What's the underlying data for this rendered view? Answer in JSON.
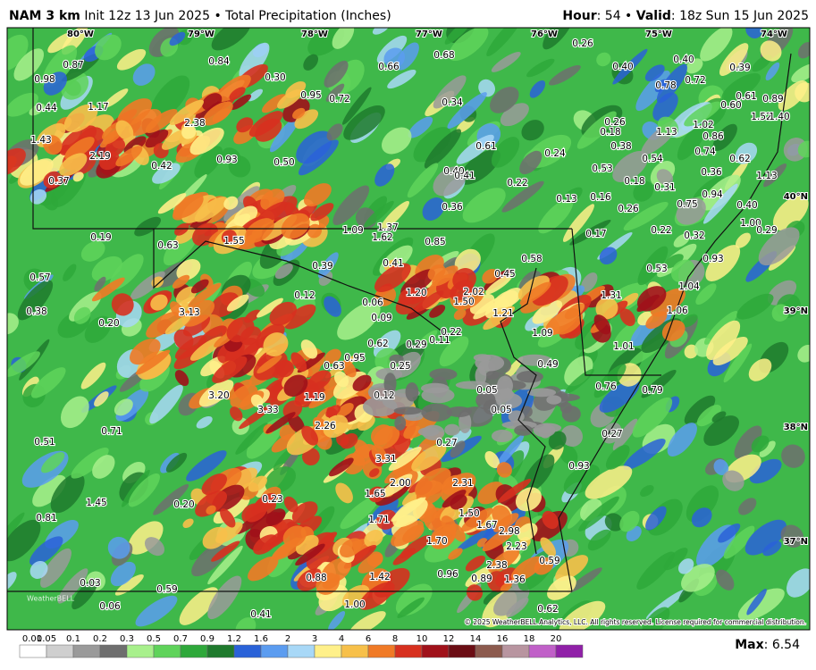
{
  "header": {
    "model": "NAM 3 km",
    "info": "Init 12z 13 Jun 2025 • Total Precipitation (Inches)",
    "hour_key": "Hour",
    "hour_value": ": 54 • ",
    "valid_key": "Valid",
    "valid_value": ": 18z Sun 15 Jun 2025"
  },
  "longitudes": [
    "80°W",
    "79°W",
    "78°W",
    "77°W",
    "76°W",
    "75°W",
    "74°W"
  ],
  "latitudes": [
    "40°N",
    "39°N",
    "38°N",
    "37°N"
  ],
  "points": [
    "0.87",
    "0.98",
    "0.84",
    "0.30",
    "0.66",
    "0.68",
    "0.26",
    "0.40",
    "0.39",
    "0.40",
    "0.78",
    "0.72",
    "0.44",
    "1.17",
    "0.95",
    "0.72",
    "0.34",
    "0.61",
    "0.89",
    "0.60",
    "2.38",
    "1.43",
    "1.52",
    "1.40",
    "0.26",
    "1.02",
    "0.18",
    "1.13",
    "0.86",
    "0.61",
    "0.38",
    "0.74",
    "2.19",
    "0.24",
    "0.54",
    "0.62",
    "0.93",
    "0.50",
    "0.42",
    "0.53",
    "0.36",
    "1.13",
    "0.40",
    "0.41",
    "0.37",
    "0.22",
    "0.18",
    "0.31",
    "0.94",
    "0.13",
    "0.16",
    "0.75",
    "0.40",
    "0.36",
    "0.26",
    "1.00",
    "0.29",
    "0.17",
    "0.22",
    "0.32",
    "1.09",
    "1.37",
    "1.62",
    "0.85",
    "0.19",
    "0.63",
    "1.55",
    "0.93",
    "0.58",
    "0.41",
    "0.39",
    "0.53",
    "0.57",
    "0.45",
    "1.04",
    "1.20",
    "2.02",
    "0.12",
    "1.31",
    "1.50",
    "0.06",
    "0.38",
    "3.13",
    "1.06",
    "1.21",
    "0.20",
    "0.09",
    "0.22",
    "1.09",
    "0.62",
    "0.29",
    "0.11",
    "1.01",
    "0.95",
    "0.49",
    "0.63",
    "0.25",
    "0.76",
    "0.79",
    "0.05",
    "1.19",
    "0.12",
    "3.20",
    "3.33",
    "0.05",
    "2.26",
    "0.71",
    "0.27",
    "0.27",
    "0.51",
    "3.31",
    "0.93",
    "2.00",
    "2.31",
    "1.65",
    "0.23",
    "0.20",
    "1.45",
    "1.50",
    "0.81",
    "1.71",
    "1.67",
    "2.98",
    "1.70",
    "2.23",
    "2.38",
    "0.59",
    "0.88",
    "1.42",
    "0.96",
    "0.89",
    "1.36",
    "0.03",
    "0.59",
    "0.06",
    "1.00",
    "0.41",
    "0.62"
  ],
  "watermark": "WeatherBELL",
  "copyright": "© 2025 WeatherBELL Analytics, LLC. All rights reserved. License required for commercial distribution.",
  "colorbar": {
    "labels": [
      "0.01",
      "0.05",
      "0.1",
      "0.2",
      "0.3",
      "0.5",
      "0.7",
      "0.9",
      "1.2",
      "1.6",
      "2",
      "3",
      "4",
      "6",
      "8",
      "10",
      "12",
      "14",
      "16",
      "18",
      "20"
    ],
    "colors": [
      "#ffffff",
      "#cfcfcf",
      "#9a9a9a",
      "#6e6e6e",
      "#a8f08c",
      "#5fd35a",
      "#2ea83a",
      "#1f7a2d",
      "#2a62d8",
      "#5b9cf0",
      "#a8d8f7",
      "#fff08a",
      "#f7c04a",
      "#f07a26",
      "#d7301f",
      "#a0111a",
      "#6b0d14",
      "#8c5a4e",
      "#b895a0",
      "#c060c8",
      "#9020a8"
    ]
  },
  "max": {
    "key": "Max",
    "value": ": 6.54"
  }
}
